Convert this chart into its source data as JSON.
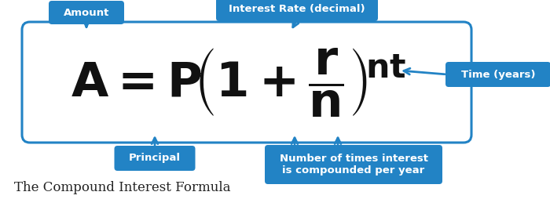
{
  "bg_color": "#ffffff",
  "box_color": "#2283c5",
  "box_text_color": "#ffffff",
  "formula_color": "#111111",
  "caption_color": "#222222",
  "caption": "The Compound Interest Formula",
  "labels": {
    "amount": "Amount",
    "interest_rate": "Interest Rate (decimal)",
    "time": "Time (years)",
    "principal": "Principal",
    "n_times": "Number of times interest\nis compounded per year"
  },
  "fig_width": 7.0,
  "fig_height": 2.54,
  "formula_fontsize": 44,
  "label_fontsize": 9.5,
  "caption_fontsize": 12
}
